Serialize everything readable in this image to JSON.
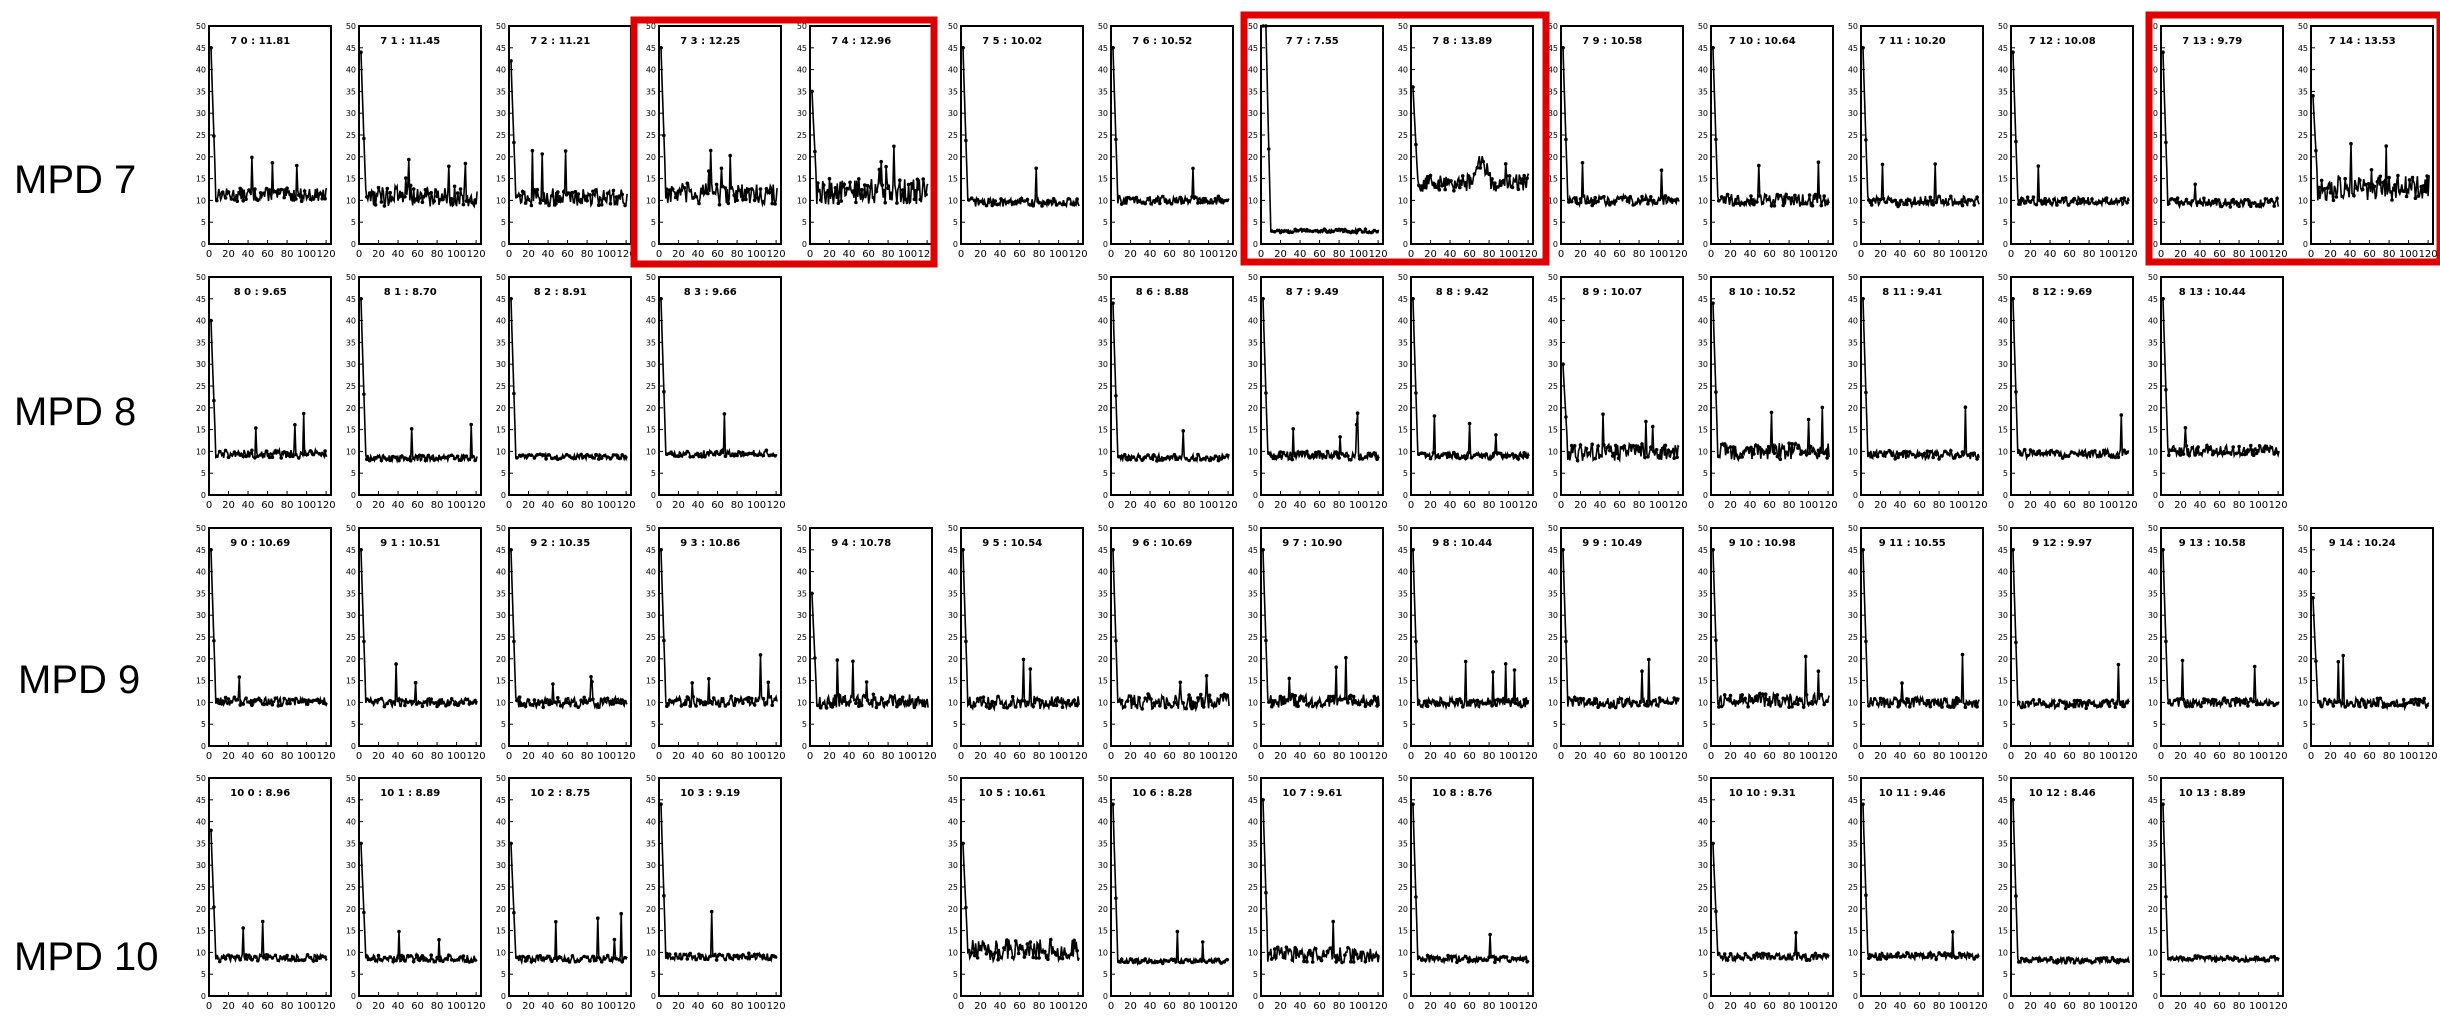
{
  "colors": {
    "line": "#000000",
    "frame": "#000000",
    "highlight": "#e00000",
    "background": "#ffffff"
  },
  "row_labels": [
    "MPD 7",
    "MPD 8",
    "MPD 9",
    "MPD 10"
  ],
  "chart_data": {
    "type": "line",
    "grid": false,
    "ylim": [
      0,
      50
    ],
    "y_ticks": [
      "0",
      "5",
      "10",
      "15",
      "20",
      "25",
      "30",
      "35",
      "40",
      "45",
      "50"
    ],
    "x_ticks": [
      "0",
      "20",
      "40",
      "60",
      "80",
      "100",
      "120"
    ],
    "panels": [
      {
        "row": 0,
        "col": 0,
        "title": "7 0 : 11.81",
        "baseline": 11.3,
        "noise": 1.5,
        "spikes": 3,
        "start": 45
      },
      {
        "row": 0,
        "col": 1,
        "title": "7 1 : 11.45",
        "baseline": 11.0,
        "noise": 2.5,
        "spikes": 4,
        "start": 44
      },
      {
        "row": 0,
        "col": 2,
        "title": "7 2 : 11.21",
        "baseline": 10.8,
        "noise": 2.0,
        "spikes": 3,
        "start": 42
      },
      {
        "row": 0,
        "col": 3,
        "title": "7 3 : 12.25",
        "baseline": 11.5,
        "noise": 2.5,
        "spikes": 4,
        "start": 45
      },
      {
        "row": 0,
        "col": 4,
        "title": "7 4 : 12.96",
        "baseline": 12.0,
        "noise": 3.0,
        "spikes": 4,
        "start": 35
      },
      {
        "row": 0,
        "col": 5,
        "title": "7 5 : 10.02",
        "baseline": 9.6,
        "noise": 1.0,
        "spikes": 1,
        "start": 45
      },
      {
        "row": 0,
        "col": 6,
        "title": "7 6 : 10.52",
        "baseline": 10.0,
        "noise": 1.0,
        "spikes": 1,
        "start": 45
      },
      {
        "row": 0,
        "col": 7,
        "title": "7 7 : 7.55",
        "baseline": 3.0,
        "noise": 0.4,
        "spikes": 0,
        "start": 50,
        "plateau": 45
      },
      {
        "row": 0,
        "col": 8,
        "title": "7 8 : 13.89",
        "baseline": 14.0,
        "noise": 2.0,
        "spikes": 1,
        "start": 36,
        "bump": 22
      },
      {
        "row": 0,
        "col": 9,
        "title": "7 9 : 10.58",
        "baseline": 10.0,
        "noise": 1.2,
        "spikes": 2,
        "start": 45
      },
      {
        "row": 0,
        "col": 10,
        "title": "7 10 : 10.64",
        "baseline": 10.0,
        "noise": 1.5,
        "spikes": 2,
        "start": 45
      },
      {
        "row": 0,
        "col": 11,
        "title": "7 11 : 10.20",
        "baseline": 9.8,
        "noise": 1.2,
        "spikes": 2,
        "start": 45
      },
      {
        "row": 0,
        "col": 12,
        "title": "7 12 : 10.08",
        "baseline": 9.8,
        "noise": 1.0,
        "spikes": 1,
        "start": 44
      },
      {
        "row": 0,
        "col": 13,
        "title": "7 13 : 9.79",
        "baseline": 9.5,
        "noise": 1.0,
        "spikes": 1,
        "start": 44
      },
      {
        "row": 0,
        "col": 14,
        "title": "7 14 : 13.53",
        "baseline": 13.0,
        "noise": 3.0,
        "spikes": 3,
        "start": 34
      },
      {
        "row": 1,
        "col": 0,
        "title": "8 0 : 9.65",
        "baseline": 9.4,
        "noise": 1.0,
        "spikes": 3,
        "start": 40
      },
      {
        "row": 1,
        "col": 1,
        "title": "8 1 : 8.70",
        "baseline": 8.5,
        "noise": 0.7,
        "spikes": 2,
        "start": 45
      },
      {
        "row": 1,
        "col": 2,
        "title": "8 2 : 8.91",
        "baseline": 8.8,
        "noise": 0.6,
        "spikes": 0,
        "start": 45
      },
      {
        "row": 1,
        "col": 3,
        "title": "8 3 : 9.66",
        "baseline": 9.5,
        "noise": 0.8,
        "spikes": 1,
        "start": 45
      },
      {
        "row": 1,
        "col": 6,
        "title": "8 6 : 8.88",
        "baseline": 8.6,
        "noise": 0.8,
        "spikes": 1,
        "start": 44
      },
      {
        "row": 1,
        "col": 7,
        "title": "8 7 : 9.49",
        "baseline": 9.0,
        "noise": 1.0,
        "spikes": 4,
        "start": 45
      },
      {
        "row": 1,
        "col": 8,
        "title": "8 8 : 9.42",
        "baseline": 9.0,
        "noise": 0.8,
        "spikes": 3,
        "start": 45
      },
      {
        "row": 1,
        "col": 9,
        "title": "8 9 : 10.07",
        "baseline": 9.8,
        "noise": 2.0,
        "spikes": 3,
        "start": 30
      },
      {
        "row": 1,
        "col": 10,
        "title": "8 10 : 10.52",
        "baseline": 10.0,
        "noise": 2.0,
        "spikes": 3,
        "start": 44
      },
      {
        "row": 1,
        "col": 11,
        "title": "8 11 : 9.41",
        "baseline": 9.2,
        "noise": 1.0,
        "spikes": 1,
        "start": 45
      },
      {
        "row": 1,
        "col": 12,
        "title": "8 12 : 9.69",
        "baseline": 9.4,
        "noise": 1.0,
        "spikes": 1,
        "start": 45
      },
      {
        "row": 1,
        "col": 13,
        "title": "8 13 : 10.44",
        "baseline": 10.2,
        "noise": 1.2,
        "spikes": 1,
        "start": 45
      },
      {
        "row": 2,
        "col": 0,
        "title": "9 0 : 10.69",
        "baseline": 10.2,
        "noise": 1.0,
        "spikes": 2,
        "start": 45
      },
      {
        "row": 2,
        "col": 1,
        "title": "9 1 : 10.51",
        "baseline": 10.0,
        "noise": 1.0,
        "spikes": 2,
        "start": 45
      },
      {
        "row": 2,
        "col": 2,
        "title": "9 2 : 10.35",
        "baseline": 10.0,
        "noise": 1.2,
        "spikes": 3,
        "start": 45
      },
      {
        "row": 2,
        "col": 3,
        "title": "9 3 : 10.86",
        "baseline": 10.3,
        "noise": 1.2,
        "spikes": 4,
        "start": 45
      },
      {
        "row": 2,
        "col": 4,
        "title": "9 4 : 10.78",
        "baseline": 10.3,
        "noise": 1.6,
        "spikes": 3,
        "start": 35
      },
      {
        "row": 2,
        "col": 5,
        "title": "9 5 : 10.54",
        "baseline": 10.0,
        "noise": 1.5,
        "spikes": 2,
        "start": 45
      },
      {
        "row": 2,
        "col": 6,
        "title": "9 6 : 10.69",
        "baseline": 10.2,
        "noise": 1.8,
        "spikes": 2,
        "start": 45
      },
      {
        "row": 2,
        "col": 7,
        "title": "9 7 : 10.90",
        "baseline": 10.3,
        "noise": 1.5,
        "spikes": 3,
        "start": 45
      },
      {
        "row": 2,
        "col": 8,
        "title": "9 8 : 10.44",
        "baseline": 10.0,
        "noise": 1.2,
        "spikes": 4,
        "start": 45
      },
      {
        "row": 2,
        "col": 9,
        "title": "9 9 : 10.49",
        "baseline": 10.0,
        "noise": 1.2,
        "spikes": 2,
        "start": 45
      },
      {
        "row": 2,
        "col": 10,
        "title": "9 10 : 10.98",
        "baseline": 10.4,
        "noise": 1.6,
        "spikes": 2,
        "start": 45
      },
      {
        "row": 2,
        "col": 11,
        "title": "9 11 : 10.55",
        "baseline": 10.0,
        "noise": 1.2,
        "spikes": 2,
        "start": 45
      },
      {
        "row": 2,
        "col": 12,
        "title": "9 12 : 9.97",
        "baseline": 9.6,
        "noise": 1.0,
        "spikes": 1,
        "start": 45
      },
      {
        "row": 2,
        "col": 13,
        "title": "9 13 : 10.58",
        "baseline": 10.0,
        "noise": 1.0,
        "spikes": 2,
        "start": 45
      },
      {
        "row": 2,
        "col": 14,
        "title": "9 14 : 10.24",
        "baseline": 9.8,
        "noise": 1.2,
        "spikes": 3,
        "start": 34
      },
      {
        "row": 3,
        "col": 0,
        "title": "10 0 : 8.96",
        "baseline": 8.7,
        "noise": 0.8,
        "spikes": 2,
        "start": 38
      },
      {
        "row": 3,
        "col": 1,
        "title": "10 1 : 8.89",
        "baseline": 8.6,
        "noise": 0.8,
        "spikes": 2,
        "start": 35
      },
      {
        "row": 3,
        "col": 2,
        "title": "10 2 : 8.75",
        "baseline": 8.5,
        "noise": 0.8,
        "spikes": 4,
        "start": 35
      },
      {
        "row": 3,
        "col": 3,
        "title": "10 3 : 9.19",
        "baseline": 9.0,
        "noise": 0.8,
        "spikes": 1,
        "start": 44
      },
      {
        "row": 3,
        "col": 5,
        "title": "10 5 : 10.61",
        "baseline": 10.5,
        "noise": 2.5,
        "spikes": 0,
        "start": 35
      },
      {
        "row": 3,
        "col": 6,
        "title": "10 6 : 8.28",
        "baseline": 8.0,
        "noise": 0.5,
        "spikes": 2,
        "start": 44
      },
      {
        "row": 3,
        "col": 7,
        "title": "10 7 : 9.61",
        "baseline": 9.5,
        "noise": 1.8,
        "spikes": 1,
        "start": 45
      },
      {
        "row": 3,
        "col": 8,
        "title": "10 8 : 8.76",
        "baseline": 8.5,
        "noise": 0.8,
        "spikes": 1,
        "start": 44
      },
      {
        "row": 3,
        "col": 10,
        "title": "10 10 : 9.31",
        "baseline": 9.0,
        "noise": 0.8,
        "spikes": 1,
        "start": 35
      },
      {
        "row": 3,
        "col": 11,
        "title": "10 11 : 9.46",
        "baseline": 9.2,
        "noise": 0.8,
        "spikes": 1,
        "start": 44
      },
      {
        "row": 3,
        "col": 12,
        "title": "10 12 : 8.46",
        "baseline": 8.2,
        "noise": 0.6,
        "spikes": 0,
        "start": 45
      },
      {
        "row": 3,
        "col": 13,
        "title": "10 13 : 8.89",
        "baseline": 8.6,
        "noise": 0.6,
        "spikes": 0,
        "start": 44
      }
    ]
  }
}
